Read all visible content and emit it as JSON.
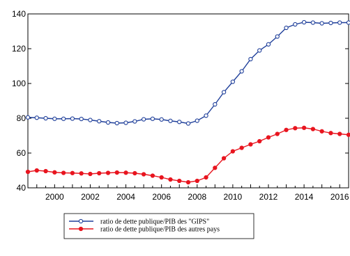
{
  "chart_data": {
    "type": "line",
    "title": "",
    "xlabel": "",
    "ylabel": "",
    "xlim": [
      1998.5,
      2016.5
    ],
    "ylim": [
      40,
      140
    ],
    "y_ticks": [
      40,
      60,
      80,
      100,
      120,
      140
    ],
    "x_ticks": [
      2000,
      2002,
      2004,
      2006,
      2008,
      2010,
      2012,
      2014,
      2016
    ],
    "x_tick_labels": [
      "2000",
      "2002",
      "2004",
      "2006",
      "2008",
      "2010",
      "2012",
      "2014",
      "2016"
    ],
    "y_tick_labels": [
      "40",
      "60",
      "80",
      "100",
      "120",
      "140"
    ],
    "grid": false,
    "legend_position": "bottom-left",
    "series": [
      {
        "name": "ratio de dette publique/PIB des \"GIPS\"",
        "color": "#1f3f9a",
        "marker": "hollow-circle",
        "x": [
          1998.5,
          1999.0,
          1999.5,
          2000.0,
          2000.5,
          2001.0,
          2001.5,
          2002.0,
          2002.5,
          2003.0,
          2003.5,
          2004.0,
          2004.5,
          2005.0,
          2005.5,
          2006.0,
          2006.5,
          2007.0,
          2007.5,
          2008.0,
          2008.5,
          2009.0,
          2009.5,
          2010.0,
          2010.5,
          2011.0,
          2011.5,
          2012.0,
          2012.5,
          2013.0,
          2013.5,
          2014.0,
          2014.5,
          2015.0,
          2015.5,
          2016.0,
          2016.5
        ],
        "values": [
          80.5,
          80.3,
          80.0,
          79.7,
          79.7,
          79.8,
          79.6,
          79.0,
          78.3,
          77.6,
          77.2,
          77.4,
          78.2,
          79.4,
          79.7,
          79.3,
          78.5,
          77.9,
          77.0,
          78.6,
          81.5,
          88.0,
          95.0,
          101.0,
          107.0,
          114.0,
          119.0,
          122.5,
          127.0,
          132.0,
          134.0,
          135.2,
          135.0,
          134.6,
          134.8,
          135.0,
          135.0
        ]
      },
      {
        "name": "ratio de dette publique/PIB des autres pays",
        "color": "#e8151f",
        "marker": "filled-circle",
        "x": [
          1998.5,
          1999.0,
          1999.5,
          2000.0,
          2000.5,
          2001.0,
          2001.5,
          2002.0,
          2002.5,
          2003.0,
          2003.5,
          2004.0,
          2004.5,
          2005.0,
          2005.5,
          2006.0,
          2006.5,
          2007.0,
          2007.5,
          2008.0,
          2008.5,
          2009.0,
          2009.5,
          2010.0,
          2010.5,
          2011.0,
          2011.5,
          2012.0,
          2012.5,
          2013.0,
          2013.5,
          2014.0,
          2014.5,
          2015.0,
          2015.5,
          2016.0,
          2016.5
        ],
        "values": [
          49.2,
          50.0,
          49.6,
          48.9,
          48.6,
          48.5,
          48.3,
          48.0,
          48.4,
          48.6,
          48.8,
          48.7,
          48.4,
          47.8,
          47.0,
          46.0,
          44.8,
          44.0,
          43.2,
          44.0,
          46.0,
          51.5,
          57.0,
          61.0,
          63.0,
          65.0,
          66.8,
          69.0,
          71.0,
          73.3,
          74.3,
          74.5,
          73.8,
          72.5,
          71.5,
          71.0,
          70.5
        ]
      }
    ]
  }
}
